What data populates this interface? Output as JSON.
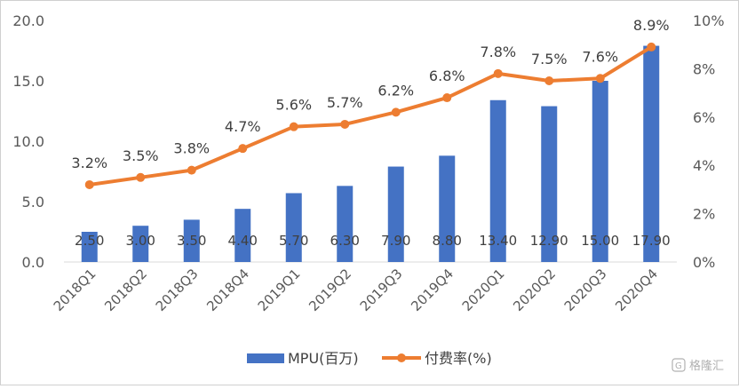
{
  "chart_data": {
    "type": "bar+line",
    "categories": [
      "2018Q1",
      "2018Q2",
      "2018Q3",
      "2018Q4",
      "2019Q1",
      "2019Q2",
      "2019Q3",
      "2019Q4",
      "2020Q1",
      "2020Q2",
      "2020Q3",
      "2020Q4"
    ],
    "series": [
      {
        "name": "MPU(百万)",
        "type": "bar",
        "axis": "left",
        "color": "#4472C4",
        "values": [
          2.5,
          3.0,
          3.5,
          4.4,
          5.7,
          6.3,
          7.9,
          8.8,
          13.4,
          12.9,
          15.0,
          17.9
        ],
        "labels": [
          "2.50",
          "3.00",
          "3.50",
          "4.40",
          "5.70",
          "6.30",
          "7.90",
          "8.80",
          "13.40",
          "12.90",
          "15.00",
          "17.90"
        ]
      },
      {
        "name": "付费率(%)",
        "type": "line",
        "axis": "right",
        "color": "#ED7D31",
        "values": [
          3.2,
          3.5,
          3.8,
          4.7,
          5.6,
          5.7,
          6.2,
          6.8,
          7.8,
          7.5,
          7.6,
          8.9
        ],
        "labels": [
          "3.2%",
          "3.5%",
          "3.8%",
          "4.7%",
          "5.6%",
          "5.7%",
          "6.2%",
          "6.8%",
          "7.8%",
          "7.5%",
          "7.6%",
          "8.9%"
        ]
      }
    ],
    "y_left": {
      "min": 0,
      "max": 20,
      "ticks": [
        "0.0",
        "5.0",
        "10.0",
        "15.0",
        "20.0"
      ]
    },
    "y_right": {
      "min": 0,
      "max": 10,
      "ticks": [
        "0%",
        "2%",
        "4%",
        "6%",
        "8%",
        "10%"
      ]
    },
    "gridlines": false,
    "legend_position": "bottom"
  },
  "watermark": "格隆汇"
}
